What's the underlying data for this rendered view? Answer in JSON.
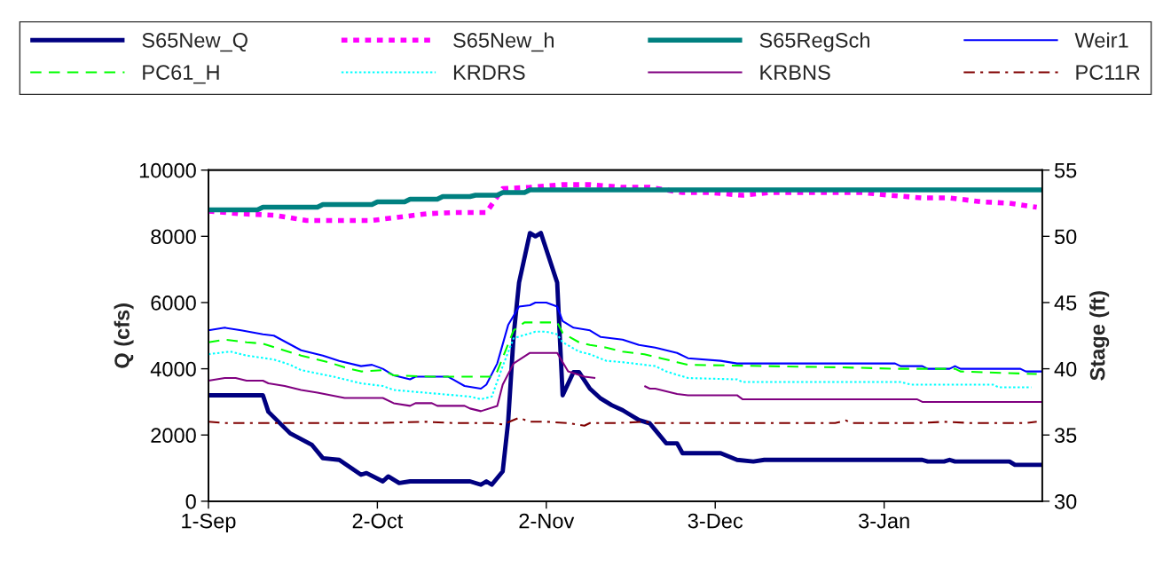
{
  "chart_data": {
    "type": "line",
    "ylabel": "Q (cfs)",
    "y2label": "Stage (ft)",
    "xlim": [
      "2000-09-01",
      "2001-02-01"
    ],
    "xticks": [
      {
        "value": "2000-09-01",
        "label": "1-Sep"
      },
      {
        "value": "2000-10-02",
        "label": "2-Oct"
      },
      {
        "value": "2000-11-02",
        "label": "2-Nov"
      },
      {
        "value": "2000-12-03",
        "label": "3-Dec"
      },
      {
        "value": "2001-01-03",
        "label": "3-Jan"
      }
    ],
    "ylim": [
      0,
      10000
    ],
    "yticks": [
      0,
      2000,
      4000,
      6000,
      8000,
      10000
    ],
    "y2lim": [
      30,
      55
    ],
    "y2ticks": [
      30,
      35,
      40,
      45,
      50,
      55
    ],
    "legend": "top",
    "marker": "none",
    "series": [
      {
        "name": "S65New_Q",
        "color": "#000080",
        "line_style": "solid",
        "x": [
          "2000-09-01",
          "2000-09-11",
          "2000-09-12",
          "2000-09-16",
          "2000-09-20",
          "2000-09-22",
          "2000-09-25",
          "2000-09-29",
          "2000-09-30",
          "2000-10-03",
          "2000-10-04",
          "2000-10-06",
          "2000-10-08",
          "2000-10-19",
          "2000-10-21",
          "2000-10-22",
          "2000-10-23",
          "2000-10-25",
          "2000-10-26",
          "2000-10-27",
          "2000-10-28",
          "2000-10-30",
          "2000-10-31",
          "2000-11-01",
          "2000-11-04",
          "2000-11-05",
          "2000-11-07",
          "2000-11-08",
          "2000-11-10",
          "2000-11-12",
          "2000-11-14",
          "2000-11-16",
          "2000-11-17",
          "2000-11-19",
          "2000-11-21",
          "2000-11-22",
          "2000-11-24",
          "2000-11-26",
          "2000-11-27",
          "2000-12-04",
          "2000-12-07",
          "2000-12-10",
          "2000-12-12",
          "2001-01-10",
          "2001-01-11",
          "2001-01-14",
          "2001-01-15",
          "2001-01-16",
          "2001-01-26",
          "2001-01-27",
          "2001-02-01"
        ],
        "values": [
          3200,
          3200,
          2700,
          2050,
          1700,
          1300,
          1250,
          800,
          850,
          600,
          750,
          550,
          600,
          600,
          500,
          600,
          500,
          900,
          2400,
          5000,
          6600,
          8100,
          8000,
          8100,
          6600,
          3200,
          3900,
          3900,
          3400,
          3100,
          2900,
          2750,
          2650,
          2450,
          2350,
          2150,
          1750,
          1750,
          1450,
          1450,
          1250,
          1200,
          1250,
          1250,
          1200,
          1200,
          1250,
          1200,
          1200,
          1100,
          1100
        ]
      },
      {
        "name": "S65New_h",
        "color": "#ff00ff",
        "line_style": "dotted",
        "axis": "y2",
        "x": [
          "2000-09-01",
          "2000-09-07",
          "2000-09-13",
          "2000-09-19",
          "2000-10-01",
          "2000-10-05",
          "2000-10-11",
          "2000-10-16",
          "2000-10-22",
          "2000-10-25",
          "2000-10-30",
          "2000-11-05",
          "2000-11-10",
          "2000-11-16",
          "2000-11-21",
          "2000-11-27",
          "2000-12-02",
          "2000-12-08",
          "2000-12-13",
          "2000-12-24",
          "2000-12-30",
          "2001-01-04",
          "2001-01-10",
          "2001-01-15",
          "2001-01-21",
          "2001-01-26",
          "2001-01-31"
        ],
        "values": [
          51.9,
          51.7,
          51.6,
          51.2,
          51.2,
          51.4,
          51.7,
          51.8,
          51.8,
          53.6,
          53.7,
          53.9,
          53.9,
          53.7,
          53.7,
          53.3,
          53.3,
          53.1,
          53.3,
          53.3,
          53.3,
          53.1,
          52.9,
          52.9,
          52.6,
          52.5,
          52.2
        ]
      },
      {
        "name": "S65RegSch",
        "color": "#008080",
        "line_style": "solid",
        "axis": "y2",
        "x": [
          "2000-09-01",
          "2000-09-10",
          "2000-09-11",
          "2000-09-21",
          "2000-09-22",
          "2000-10-01",
          "2000-10-02",
          "2000-10-07",
          "2000-10-08",
          "2000-10-13",
          "2000-10-14",
          "2000-10-19",
          "2000-10-20",
          "2000-10-24",
          "2000-10-25",
          "2000-10-29",
          "2000-10-30",
          "2001-02-01"
        ],
        "values": [
          52.0,
          52.0,
          52.2,
          52.2,
          52.4,
          52.4,
          52.6,
          52.6,
          52.8,
          52.8,
          53.0,
          53.0,
          53.1,
          53.1,
          53.3,
          53.3,
          53.5,
          53.5
        ]
      },
      {
        "name": "Weir1",
        "color": "#0000ff",
        "line_style": "solid",
        "axis": "y2",
        "x": [
          "2000-09-01",
          "2000-09-04",
          "2000-09-07",
          "2000-09-11",
          "2000-09-13",
          "2000-09-18",
          "2000-09-22",
          "2000-09-25",
          "2000-09-29",
          "2000-10-01",
          "2000-10-03",
          "2000-10-05",
          "2000-10-08",
          "2000-10-09",
          "2000-10-15",
          "2000-10-18",
          "2000-10-21",
          "2000-10-22",
          "2000-10-24",
          "2000-10-26",
          "2000-10-28",
          "2000-10-30",
          "2000-10-31",
          "2000-11-02",
          "2000-11-04",
          "2000-11-05",
          "2000-11-07",
          "2000-11-10",
          "2000-11-12",
          "2000-11-16",
          "2000-11-19",
          "2000-11-22",
          "2000-11-26",
          "2000-11-28",
          "2000-12-04",
          "2000-12-07",
          "2001-01-05",
          "2001-01-06",
          "2001-01-10",
          "2001-01-11",
          "2001-01-15",
          "2001-01-16",
          "2001-01-17",
          "2001-01-28",
          "2001-01-29",
          "2001-02-01"
        ],
        "values": [
          42.9,
          43.1,
          42.9,
          42.6,
          42.5,
          41.4,
          41.0,
          40.6,
          40.2,
          40.3,
          40.0,
          39.5,
          39.2,
          39.4,
          39.4,
          38.7,
          38.5,
          38.8,
          40.4,
          43.3,
          44.7,
          44.8,
          45.0,
          45.0,
          44.7,
          43.6,
          43.1,
          42.9,
          42.4,
          42.2,
          41.8,
          41.6,
          41.2,
          40.8,
          40.6,
          40.4,
          40.4,
          40.2,
          40.2,
          40.0,
          40.0,
          40.2,
          40.0,
          40.0,
          39.8,
          39.8
        ]
      },
      {
        "name": "PC61_H",
        "color": "#00ff00",
        "line_style": "dashed",
        "axis": "y2",
        "x": [
          "2000-09-01",
          "2000-09-04",
          "2000-09-08",
          "2000-09-11",
          "2000-09-14",
          "2000-09-18",
          "2000-09-23",
          "2000-09-26",
          "2000-09-29",
          "2000-10-03",
          "2000-10-05",
          "2000-10-12",
          "2000-10-23",
          "2000-10-24",
          "2000-10-27",
          "2000-10-29",
          "2000-11-04",
          "2000-11-05",
          "2000-11-08",
          "2000-11-10",
          "2000-11-13",
          "2000-11-16",
          "2000-11-20",
          "2000-11-23",
          "2000-11-26",
          "2000-11-28",
          "2000-12-27",
          "2001-01-05",
          "2001-01-16",
          "2001-01-17",
          "2001-01-31"
        ],
        "values": [
          42.0,
          42.2,
          42.0,
          41.9,
          41.5,
          41.0,
          40.5,
          40.1,
          39.8,
          39.9,
          39.5,
          39.4,
          39.4,
          39.8,
          42.9,
          43.5,
          43.5,
          42.7,
          42.0,
          41.8,
          41.6,
          41.3,
          41.1,
          40.8,
          40.5,
          40.3,
          40.1,
          40.0,
          40.0,
          39.8,
          39.6
        ]
      },
      {
        "name": "KRDRS",
        "color": "#00ffff",
        "line_style": "dotted",
        "axis": "y2",
        "x": [
          "2000-09-01",
          "2000-09-05",
          "2000-09-08",
          "2000-09-13",
          "2000-09-16",
          "2000-09-18",
          "2000-09-24",
          "2000-09-27",
          "2000-09-29",
          "2000-10-03",
          "2000-10-05",
          "2000-10-19",
          "2000-10-21",
          "2000-10-23",
          "2000-10-25",
          "2000-10-27",
          "2000-10-31",
          "2000-11-02",
          "2000-11-04",
          "2000-11-05",
          "2000-11-08",
          "2000-11-10",
          "2000-11-13",
          "2000-11-16",
          "2000-11-22",
          "2000-11-24",
          "2000-11-28",
          "2000-12-07",
          "2000-12-08",
          "2001-01-06",
          "2001-01-08",
          "2001-01-23",
          "2001-01-24",
          "2001-01-30"
        ],
        "values": [
          41.1,
          41.3,
          41.0,
          40.7,
          40.3,
          39.9,
          39.4,
          39.1,
          38.9,
          38.7,
          38.4,
          37.9,
          37.7,
          37.9,
          40.2,
          42.3,
          42.8,
          42.8,
          42.6,
          42.0,
          41.3,
          41.1,
          40.6,
          40.5,
          40.2,
          39.8,
          39.3,
          39.2,
          39.0,
          39.0,
          38.8,
          38.8,
          38.6,
          38.6
        ]
      },
      {
        "name": "KRBNS",
        "color": "#800080",
        "line_style": "solid",
        "axis": "y2",
        "x": [
          "2000-09-01",
          "2000-09-04",
          "2000-09-06",
          "2000-09-08",
          "2000-09-11",
          "2000-09-12",
          "2000-09-15",
          "2000-09-18",
          "2000-09-21",
          "2000-09-26",
          "2000-10-03",
          "2000-10-05",
          "2000-10-08",
          "2000-10-09",
          "2000-10-12",
          "2000-10-13",
          "2000-10-18",
          "2000-10-19",
          "2000-10-21",
          "2000-10-24",
          "2000-10-25",
          "2000-10-27",
          "2000-10-30",
          "2000-11-04",
          "2000-11-06",
          "2000-11-09",
          "2000-11-11",
          "2000-11-15",
          "2000-11-20",
          "2000-11-21",
          "2000-11-22",
          "2000-11-26",
          "2000-11-28",
          "2000-12-07",
          "2000-12-08",
          "2001-01-09",
          "2001-01-10",
          "2001-02-01"
        ],
        "values": [
          39.1,
          39.3,
          39.3,
          39.1,
          39.1,
          38.9,
          38.7,
          38.4,
          38.2,
          37.8,
          37.8,
          37.4,
          37.2,
          37.4,
          37.4,
          37.2,
          37.2,
          37.0,
          36.8,
          37.2,
          38.8,
          40.4,
          41.2,
          41.2,
          39.8,
          39.4,
          39.3,
          null,
          38.7,
          38.5,
          38.5,
          38.1,
          38.0,
          38.0,
          37.7,
          37.7,
          37.5,
          37.5
        ]
      },
      {
        "name": "PC11R",
        "color": "#800000",
        "line_style": "dashdot",
        "axis": "y2",
        "x": [
          "2000-09-01",
          "2000-09-04",
          "2000-09-21",
          "2000-10-01",
          "2000-10-11",
          "2000-10-16",
          "2000-10-23",
          "2000-10-25",
          "2000-10-28",
          "2000-10-30",
          "2000-11-02",
          "2000-11-06",
          "2000-11-09",
          "2000-11-10",
          "2000-11-15",
          "2000-11-20",
          "2000-11-22",
          "2000-12-10",
          "2000-12-25",
          "2000-12-27",
          "2000-12-28",
          "2001-01-09",
          "2001-01-14",
          "2001-01-19",
          "2001-01-29",
          "2001-01-31"
        ],
        "values": [
          36.0,
          35.9,
          35.9,
          35.9,
          36.0,
          35.9,
          35.9,
          35.8,
          36.3,
          36.0,
          36.0,
          35.9,
          35.7,
          35.9,
          35.9,
          36.0,
          35.9,
          35.9,
          35.9,
          36.1,
          35.9,
          35.9,
          36.0,
          35.9,
          35.9,
          36.0
        ]
      }
    ]
  }
}
